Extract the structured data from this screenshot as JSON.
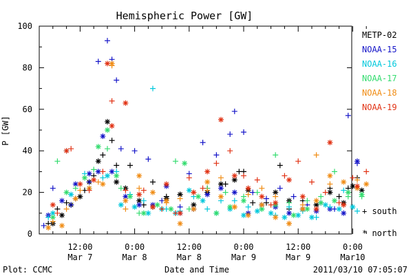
{
  "chart_data": {
    "type": "scatter",
    "title": "Hemispheric Power [GW]",
    "xlabel": "Date and Time",
    "ylabel": "P [GW]",
    "ylim": [
      0,
      100
    ],
    "xlim": [
      -20,
      70
    ],
    "x_units": "hours from 2011-03-07 00:00 UT",
    "y_ticks": [
      "0",
      "20",
      "40",
      "60",
      "80",
      "100"
    ],
    "x_ticks": [
      {
        "x": 12,
        "time": "12:00",
        "date": "Mar 7"
      },
      {
        "x": 24,
        "time": "0:00",
        "date": "Mar 8"
      },
      {
        "x": 36,
        "time": "12:00",
        "date": "Mar 8"
      },
      {
        "x": 48,
        "time": "0:00",
        "date": "Mar 9"
      },
      {
        "x": 60,
        "time": "12:00",
        "date": "Mar 9"
      },
      {
        "x": 72,
        "time": "0:00",
        "date": "Mar10"
      }
    ],
    "grid": false,
    "legend_position": "right",
    "symbol_legend": {
      "south": "+ south",
      "north": "* north"
    },
    "series": [
      {
        "name": "METP-02",
        "color": "#000000",
        "south": [
          [
            5,
            5
          ],
          [
            7,
            12
          ],
          [
            9,
            15
          ],
          [
            11,
            17
          ],
          [
            13,
            21
          ],
          [
            15,
            28
          ],
          [
            17,
            38
          ],
          [
            19,
            45
          ],
          [
            20,
            33
          ],
          [
            23,
            33
          ],
          [
            26,
            14
          ],
          [
            28,
            25
          ],
          [
            31,
            18
          ],
          [
            34,
            19
          ],
          [
            37,
            12
          ],
          [
            40,
            22
          ],
          [
            44,
            24
          ],
          [
            47,
            30
          ],
          [
            48,
            30
          ],
          [
            50,
            15
          ],
          [
            53,
            15
          ],
          [
            56,
            33
          ],
          [
            58,
            12
          ],
          [
            61,
            16
          ],
          [
            64,
            14
          ],
          [
            67,
            22
          ],
          [
            69,
            18
          ],
          [
            71,
            22
          ],
          [
            73,
            27
          ]
        ],
        "north": [
          [
            6,
            5
          ],
          [
            8,
            9
          ],
          [
            10,
            14
          ],
          [
            12,
            18
          ],
          [
            14,
            25
          ],
          [
            16,
            35
          ],
          [
            18,
            54
          ],
          [
            20,
            25
          ],
          [
            22,
            22
          ],
          [
            25,
            16
          ],
          [
            28,
            13
          ],
          [
            31,
            17
          ],
          [
            34,
            19
          ],
          [
            37,
            14
          ],
          [
            40,
            20
          ],
          [
            43,
            24
          ],
          [
            46,
            26
          ],
          [
            49,
            21
          ],
          [
            52,
            14
          ],
          [
            55,
            20
          ],
          [
            58,
            16
          ],
          [
            61,
            12
          ],
          [
            64,
            14
          ],
          [
            67,
            20
          ],
          [
            70,
            15
          ],
          [
            72,
            23
          ],
          [
            74,
            21
          ]
        ]
      },
      {
        "name": "NOAA-15",
        "color": "#1414c8",
        "south": [
          [
            4,
            4
          ],
          [
            6,
            22
          ],
          [
            10,
            14
          ],
          [
            14,
            25
          ],
          [
            16,
            83
          ],
          [
            18,
            93
          ],
          [
            19,
            84
          ],
          [
            20,
            74
          ],
          [
            21,
            41
          ],
          [
            24,
            40
          ],
          [
            27,
            36
          ],
          [
            30,
            16
          ],
          [
            34,
            13
          ],
          [
            36,
            29
          ],
          [
            39,
            44
          ],
          [
            42,
            38
          ],
          [
            45,
            48
          ],
          [
            46,
            59
          ],
          [
            48,
            49
          ],
          [
            50,
            20
          ],
          [
            53,
            17
          ],
          [
            56,
            22
          ],
          [
            59,
            18
          ],
          [
            62,
            14
          ],
          [
            65,
            15
          ],
          [
            68,
            12
          ],
          [
            71,
            57
          ],
          [
            73,
            34
          ]
        ],
        "north": [
          [
            5,
            9
          ],
          [
            8,
            16
          ],
          [
            11,
            24
          ],
          [
            14,
            29
          ],
          [
            16,
            30
          ],
          [
            17,
            47
          ],
          [
            19,
            30
          ],
          [
            22,
            18
          ],
          [
            25,
            14
          ],
          [
            28,
            14
          ],
          [
            31,
            23
          ],
          [
            34,
            10
          ],
          [
            37,
            12
          ],
          [
            40,
            19
          ],
          [
            43,
            22
          ],
          [
            46,
            20
          ],
          [
            49,
            10
          ],
          [
            52,
            14
          ],
          [
            55,
            13
          ],
          [
            58,
            10
          ],
          [
            61,
            12
          ],
          [
            64,
            11
          ],
          [
            67,
            12
          ],
          [
            70,
            10
          ],
          [
            73,
            35
          ]
        ]
      },
      {
        "name": "NOAA-16",
        "color": "#00c8dc",
        "south": [
          [
            5,
            8
          ],
          [
            9,
            40
          ],
          [
            13,
            29
          ],
          [
            17,
            27
          ],
          [
            20,
            30
          ],
          [
            23,
            19
          ],
          [
            26,
            16
          ],
          [
            28,
            70
          ],
          [
            31,
            12
          ],
          [
            34,
            11
          ],
          [
            37,
            18
          ],
          [
            40,
            12
          ],
          [
            43,
            16
          ],
          [
            46,
            16
          ],
          [
            49,
            13
          ],
          [
            52,
            12
          ],
          [
            55,
            9
          ],
          [
            58,
            13
          ],
          [
            61,
            11
          ],
          [
            64,
            8
          ],
          [
            67,
            13
          ],
          [
            70,
            21
          ],
          [
            73,
            11
          ]
        ],
        "north": [
          [
            6,
            10
          ],
          [
            10,
            19
          ],
          [
            14,
            22
          ],
          [
            18,
            28
          ],
          [
            21,
            14
          ],
          [
            24,
            13
          ],
          [
            27,
            10
          ],
          [
            30,
            12
          ],
          [
            33,
            10
          ],
          [
            36,
            21
          ],
          [
            39,
            16
          ],
          [
            42,
            10
          ],
          [
            45,
            12
          ],
          [
            48,
            9
          ],
          [
            51,
            11
          ],
          [
            54,
            10
          ],
          [
            57,
            8
          ],
          [
            60,
            9
          ],
          [
            63,
            8
          ],
          [
            66,
            14
          ],
          [
            69,
            12
          ],
          [
            72,
            13
          ]
        ]
      },
      {
        "name": "NOAA-17",
        "color": "#32dc6e",
        "south": [
          [
            7,
            35
          ],
          [
            11,
            22
          ],
          [
            15,
            31
          ],
          [
            18,
            41
          ],
          [
            21,
            22
          ],
          [
            25,
            10
          ],
          [
            28,
            13
          ],
          [
            33,
            35
          ],
          [
            36,
            12
          ],
          [
            40,
            22
          ],
          [
            44,
            20
          ],
          [
            48,
            18
          ],
          [
            51,
            20
          ],
          [
            55,
            38
          ],
          [
            58,
            15
          ],
          [
            62,
            16
          ],
          [
            65,
            18
          ],
          [
            68,
            30
          ],
          [
            71,
            18
          ],
          [
            74,
            18
          ]
        ],
        "north": [
          [
            6,
            8
          ],
          [
            9,
            20
          ],
          [
            13,
            27
          ],
          [
            16,
            42
          ],
          [
            18,
            50
          ],
          [
            20,
            28
          ],
          [
            23,
            18
          ],
          [
            26,
            10
          ],
          [
            29,
            14
          ],
          [
            32,
            12
          ],
          [
            35,
            34
          ],
          [
            38,
            18
          ],
          [
            42,
            10
          ],
          [
            45,
            13
          ],
          [
            48,
            16
          ],
          [
            52,
            12
          ],
          [
            55,
            14
          ],
          [
            59,
            9
          ],
          [
            62,
            12
          ],
          [
            65,
            15
          ],
          [
            68,
            16
          ],
          [
            71,
            20
          ],
          [
            74,
            19
          ]
        ]
      },
      {
        "name": "NOAA-18",
        "color": "#f08c14",
        "south": [
          [
            6,
            6
          ],
          [
            9,
            12
          ],
          [
            12,
            21
          ],
          [
            16,
            25
          ],
          [
            19,
            81
          ],
          [
            22,
            12
          ],
          [
            25,
            22
          ],
          [
            28,
            13
          ],
          [
            31,
            15
          ],
          [
            34,
            17
          ],
          [
            37,
            20
          ],
          [
            40,
            21
          ],
          [
            43,
            27
          ],
          [
            46,
            13
          ],
          [
            49,
            19
          ],
          [
            52,
            22
          ],
          [
            55,
            18
          ],
          [
            58,
            5
          ],
          [
            61,
            14
          ],
          [
            64,
            38
          ],
          [
            67,
            24
          ],
          [
            70,
            14
          ],
          [
            73,
            26
          ]
        ],
        "north": [
          [
            5,
            3
          ],
          [
            8,
            4
          ],
          [
            11,
            17
          ],
          [
            14,
            22
          ],
          [
            17,
            24
          ],
          [
            19,
            82
          ],
          [
            22,
            16
          ],
          [
            25,
            28
          ],
          [
            28,
            20
          ],
          [
            31,
            16
          ],
          [
            34,
            5
          ],
          [
            37,
            12
          ],
          [
            40,
            25
          ],
          [
            43,
            18
          ],
          [
            46,
            13
          ],
          [
            49,
            9
          ],
          [
            52,
            14
          ],
          [
            55,
            8
          ],
          [
            58,
            5
          ],
          [
            61,
            12
          ],
          [
            64,
            16
          ],
          [
            67,
            28
          ],
          [
            70,
            25
          ],
          [
            73,
            22
          ],
          [
            75,
            24
          ]
        ]
      },
      {
        "name": "NOAA-19",
        "color": "#e13214",
        "south": [
          [
            7,
            10
          ],
          [
            10,
            41
          ],
          [
            14,
            21
          ],
          [
            17,
            30
          ],
          [
            19,
            64
          ],
          [
            22,
            21
          ],
          [
            26,
            21
          ],
          [
            30,
            12
          ],
          [
            33,
            10
          ],
          [
            36,
            27
          ],
          [
            39,
            22
          ],
          [
            42,
            34
          ],
          [
            45,
            40
          ],
          [
            48,
            28
          ],
          [
            51,
            26
          ],
          [
            54,
            14
          ],
          [
            57,
            28
          ],
          [
            60,
            35
          ],
          [
            63,
            25
          ],
          [
            66,
            20
          ],
          [
            69,
            15
          ],
          [
            72,
            27
          ],
          [
            75,
            30
          ]
        ],
        "north": [
          [
            6,
            14
          ],
          [
            9,
            40
          ],
          [
            12,
            24
          ],
          [
            15,
            26
          ],
          [
            18,
            82
          ],
          [
            19,
            52
          ],
          [
            22,
            63
          ],
          [
            25,
            19
          ],
          [
            28,
            13
          ],
          [
            31,
            24
          ],
          [
            34,
            10
          ],
          [
            37,
            20
          ],
          [
            40,
            30
          ],
          [
            43,
            55
          ],
          [
            46,
            28
          ],
          [
            49,
            22
          ],
          [
            52,
            18
          ],
          [
            55,
            15
          ],
          [
            58,
            26
          ],
          [
            61,
            18
          ],
          [
            64,
            12
          ],
          [
            67,
            44
          ],
          [
            70,
            14
          ],
          [
            73,
            23
          ]
        ]
      }
    ]
  },
  "footer": {
    "plot_credit": "Plot: CCMC",
    "timestamp": "2011/03/10 07:05:07"
  }
}
